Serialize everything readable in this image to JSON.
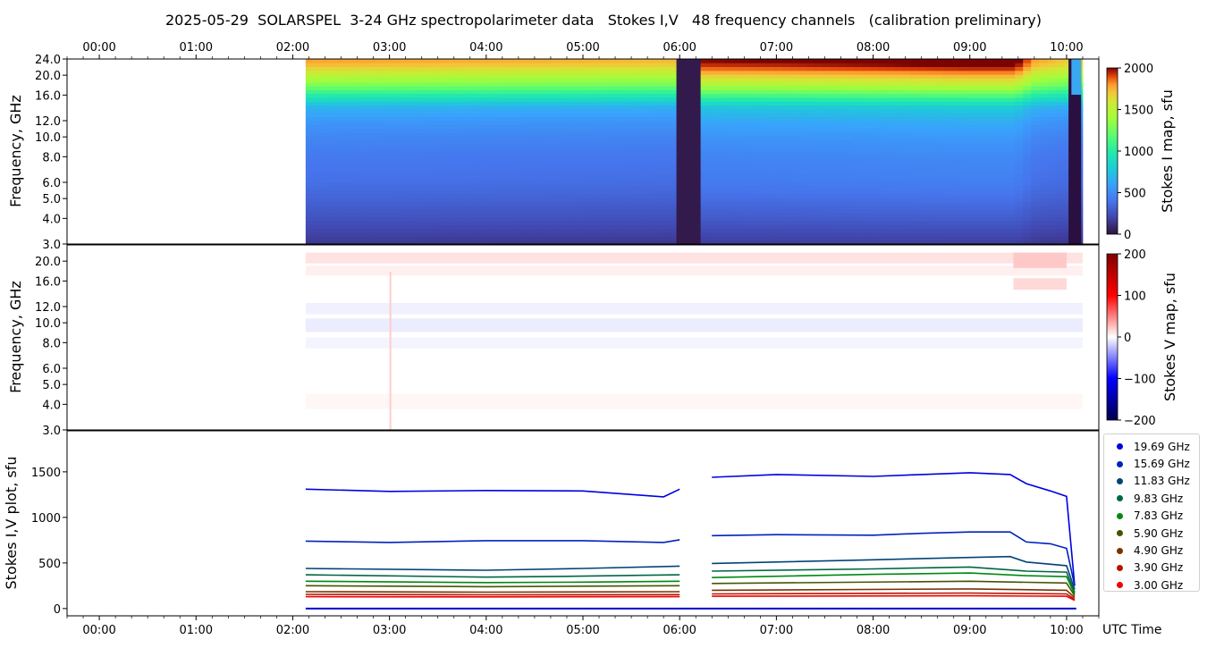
{
  "title": "2025-05-29  SOLARSPEL  3-24 GHz spectropolarimeter data   Stokes I,V   48 frequency channels   (calibration preliminary)",
  "time_ticks": [
    "00:00",
    "01:00",
    "02:00",
    "03:00",
    "04:00",
    "05:00",
    "06:00",
    "07:00",
    "08:00",
    "09:00",
    "10:00"
  ],
  "xlabel": "UTC Time",
  "panel1": {
    "ylabel": "Frequency, GHz",
    "yticks": [
      "3.0",
      "4.0",
      "5.0",
      "6.0",
      "8.0",
      "10.0",
      "12.0",
      "16.0",
      "20.0",
      "24.0"
    ],
    "colorbar_label": "Stokes I map, sfu",
    "colorbar_ticks": [
      "0",
      "500",
      "1000",
      "1500",
      "2000"
    ]
  },
  "panel2": {
    "ylabel": "Frequency, GHz",
    "yticks": [
      "3.0",
      "4.0",
      "5.0",
      "6.0",
      "8.0",
      "10.0",
      "12.0",
      "16.0",
      "20.0"
    ],
    "colorbar_label": "Stokes V map, sfu",
    "colorbar_ticks": [
      "−200",
      "−100",
      "0",
      "100",
      "200"
    ]
  },
  "panel3": {
    "ylabel": "Stokes I,V plot, sfu",
    "yticks": [
      "0",
      "500",
      "1000",
      "1500"
    ]
  },
  "colors": {
    "ch1969": "#0000e0",
    "ch1569": "#0022bb",
    "ch1183": "#004477",
    "ch983": "#006644",
    "ch783": "#008811",
    "ch590": "#445500",
    "ch490": "#773300",
    "ch390": "#bb1100",
    "ch300": "#ee0000"
  },
  "chart_data": [
    {
      "type": "heatmap",
      "quantity": "Stokes I",
      "x_range_utc": [
        "-00:20",
        "10:20"
      ],
      "data_start_utc": "02:08",
      "data_end_utc": "10:10",
      "gap_utc": [
        "06:00",
        "06:12"
      ],
      "ylim_ghz": [
        3.0,
        24.0
      ],
      "y_scale": "log",
      "colorbar_range": [
        0,
        2000
      ],
      "colormap": "turbo",
      "frequency_profile": [
        [
          3.0,
          150
        ],
        [
          4.0,
          260
        ],
        [
          5.0,
          330
        ],
        [
          6.0,
          380
        ],
        [
          8.0,
          420
        ],
        [
          10.0,
          480
        ],
        [
          12.0,
          560
        ],
        [
          14.0,
          680
        ],
        [
          16.0,
          1000
        ],
        [
          18.0,
          1300
        ],
        [
          20.0,
          1500
        ],
        [
          22.0,
          1700
        ],
        [
          24.0,
          1800
        ]
      ],
      "level_vs_time": [
        [
          "02:08",
          1.0
        ],
        [
          "06:00",
          0.97
        ],
        [
          "06:12",
          1.12
        ],
        [
          "07:00",
          1.13
        ],
        [
          "09:00",
          1.17
        ],
        [
          "09:28",
          1.17
        ],
        [
          "09:40",
          1.0
        ],
        [
          "10:00",
          0.95
        ]
      ]
    },
    {
      "type": "heatmap",
      "quantity": "Stokes V",
      "x_range_utc": [
        "-00:20",
        "10:20"
      ],
      "ylim_ghz": [
        3.0,
        24.0
      ],
      "y_scale": "log",
      "colorbar_range": [
        -200,
        200
      ],
      "colormap": "seismic"
    },
    {
      "type": "scatter",
      "quantity": "Stokes I,V",
      "x_range_utc": [
        "-00:20",
        "10:20"
      ],
      "ylim": [
        -80,
        1950
      ],
      "ylabel": "Stokes I,V plot, sfu",
      "legend_placement": "outside-right",
      "series": [
        {
          "name": "19.69 GHz",
          "color": "#0000e0",
          "values": [
            [
              "02:08",
              1310
            ],
            [
              "03:00",
              1285
            ],
            [
              "04:00",
              1295
            ],
            [
              "05:00",
              1290
            ],
            [
              "05:50",
              1225
            ],
            [
              "06:00",
              1310
            ],
            [
              "06:20",
              1440
            ],
            [
              "07:00",
              1470
            ],
            [
              "08:00",
              1450
            ],
            [
              "08:30",
              1470
            ],
            [
              "09:00",
              1490
            ],
            [
              "09:25",
              1470
            ],
            [
              "09:35",
              1370
            ],
            [
              "09:50",
              1290
            ],
            [
              "10:00",
              1230
            ],
            [
              "10:05",
              250
            ]
          ]
        },
        {
          "name": "15.69 GHz",
          "color": "#0022bb",
          "values": [
            [
              "02:08",
              740
            ],
            [
              "03:00",
              725
            ],
            [
              "04:00",
              745
            ],
            [
              "05:00",
              745
            ],
            [
              "05:50",
              725
            ],
            [
              "06:00",
              755
            ],
            [
              "06:20",
              800
            ],
            [
              "07:00",
              810
            ],
            [
              "08:00",
              805
            ],
            [
              "08:30",
              825
            ],
            [
              "09:00",
              840
            ],
            [
              "09:25",
              840
            ],
            [
              "09:35",
              730
            ],
            [
              "09:50",
              710
            ],
            [
              "10:00",
              660
            ],
            [
              "10:05",
              250
            ]
          ]
        },
        {
          "name": "11.83 GHz",
          "color": "#004477",
          "values": [
            [
              "02:08",
              440
            ],
            [
              "04:00",
              420
            ],
            [
              "05:00",
              440
            ],
            [
              "06:00",
              465
            ],
            [
              "06:20",
              495
            ],
            [
              "08:00",
              535
            ],
            [
              "09:00",
              560
            ],
            [
              "09:25",
              570
            ],
            [
              "09:35",
              510
            ],
            [
              "10:00",
              470
            ],
            [
              "10:05",
              210
            ]
          ]
        },
        {
          "name": "9.83 GHz",
          "color": "#006644",
          "values": [
            [
              "02:08",
              370
            ],
            [
              "04:00",
              345
            ],
            [
              "05:00",
              355
            ],
            [
              "06:00",
              370
            ],
            [
              "06:20",
              410
            ],
            [
              "08:00",
              435
            ],
            [
              "09:00",
              455
            ],
            [
              "09:35",
              410
            ],
            [
              "10:00",
              400
            ],
            [
              "10:05",
              180
            ]
          ]
        },
        {
          "name": "7.83 GHz",
          "color": "#008811",
          "values": [
            [
              "02:08",
              300
            ],
            [
              "04:00",
              285
            ],
            [
              "05:00",
              290
            ],
            [
              "06:00",
              300
            ],
            [
              "06:20",
              340
            ],
            [
              "08:00",
              375
            ],
            [
              "09:00",
              390
            ],
            [
              "09:35",
              360
            ],
            [
              "10:00",
              350
            ],
            [
              "10:05",
              160
            ]
          ]
        },
        {
          "name": "5.90 GHz",
          "color": "#445500",
          "values": [
            [
              "02:08",
              250
            ],
            [
              "04:00",
              240
            ],
            [
              "06:00",
              250
            ],
            [
              "06:20",
              275
            ],
            [
              "09:00",
              300
            ],
            [
              "10:00",
              280
            ],
            [
              "10:05",
              140
            ]
          ]
        },
        {
          "name": "4.90 GHz",
          "color": "#773300",
          "values": [
            [
              "02:08",
              185
            ],
            [
              "04:00",
              180
            ],
            [
              "06:00",
              185
            ],
            [
              "06:20",
              200
            ],
            [
              "09:00",
              215
            ],
            [
              "10:00",
              200
            ],
            [
              "10:05",
              120
            ]
          ]
        },
        {
          "name": "3.90 GHz",
          "color": "#bb1100",
          "values": [
            [
              "02:08",
              155
            ],
            [
              "04:00",
              150
            ],
            [
              "06:00",
              152
            ],
            [
              "06:20",
              160
            ],
            [
              "09:00",
              170
            ],
            [
              "10:00",
              160
            ],
            [
              "10:05",
              100
            ]
          ]
        },
        {
          "name": "3.00 GHz",
          "color": "#ee0000",
          "values": [
            [
              "02:08",
              130
            ],
            [
              "04:00",
              128
            ],
            [
              "06:00",
              130
            ],
            [
              "06:20",
              135
            ],
            [
              "09:00",
              140
            ],
            [
              "10:00",
              135
            ],
            [
              "10:05",
              90
            ]
          ]
        }
      ]
    }
  ]
}
